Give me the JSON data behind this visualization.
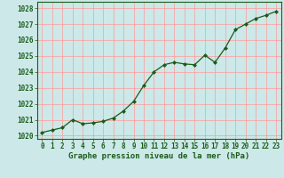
{
  "x": [
    0,
    1,
    2,
    3,
    4,
    5,
    6,
    7,
    8,
    9,
    10,
    11,
    12,
    13,
    14,
    15,
    16,
    17,
    18,
    19,
    20,
    21,
    22,
    23
  ],
  "y": [
    1020.2,
    1020.35,
    1020.5,
    1021.0,
    1020.75,
    1020.8,
    1020.9,
    1021.1,
    1021.55,
    1022.15,
    1023.15,
    1024.0,
    1024.45,
    1024.6,
    1024.5,
    1024.45,
    1025.05,
    1024.6,
    1025.5,
    1026.65,
    1027.0,
    1027.35,
    1027.55,
    1027.8
  ],
  "ylim": [
    1019.8,
    1028.4
  ],
  "yticks": [
    1020,
    1021,
    1022,
    1023,
    1024,
    1025,
    1026,
    1027,
    1028
  ],
  "xticks": [
    0,
    1,
    2,
    3,
    4,
    5,
    6,
    7,
    8,
    9,
    10,
    11,
    12,
    13,
    14,
    15,
    16,
    17,
    18,
    19,
    20,
    21,
    22,
    23
  ],
  "xlabel": "Graphe pression niveau de la mer (hPa)",
  "line_color": "#1a5c1a",
  "marker": "D",
  "marker_size": 2.0,
  "bg_color": "#cce8e8",
  "grid_color_major": "#ff9999",
  "grid_color_minor": "#ffcccc",
  "tick_label_color": "#1a5c1a",
  "xlabel_color": "#1a5c1a",
  "xlabel_fontsize": 6.5,
  "tick_fontsize": 5.5,
  "linewidth": 0.9
}
